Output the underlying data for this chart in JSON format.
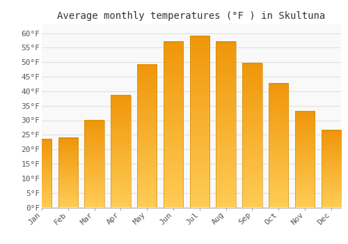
{
  "title": "Average monthly temperatures (°F ) in Skultuna",
  "months": [
    "Jan",
    "Feb",
    "Mar",
    "Apr",
    "May",
    "Jun",
    "Jul",
    "Aug",
    "Sep",
    "Oct",
    "Nov",
    "Dec"
  ],
  "values": [
    23.5,
    24.0,
    30.0,
    38.5,
    49.0,
    57.0,
    59.0,
    57.0,
    49.5,
    42.5,
    33.0,
    26.5
  ],
  "bar_color_top": "#F5A623",
  "bar_color_bottom": "#FFCC66",
  "bar_edge_color": "#C8870A",
  "plot_bg_color": "#f9f9f9",
  "fig_bg_color": "#ffffff",
  "grid_color": "#e0e0e0",
  "title_color": "#333333",
  "tick_color": "#555555",
  "ylim": [
    0,
    63
  ],
  "yticks": [
    0,
    5,
    10,
    15,
    20,
    25,
    30,
    35,
    40,
    45,
    50,
    55,
    60
  ],
  "ytick_labels": [
    "0°F",
    "5°F",
    "10°F",
    "15°F",
    "20°F",
    "25°F",
    "30°F",
    "35°F",
    "40°F",
    "45°F",
    "50°F",
    "55°F",
    "60°F"
  ],
  "title_fontsize": 10,
  "tick_fontsize": 8,
  "tick_font": "monospace",
  "bar_width": 0.75
}
